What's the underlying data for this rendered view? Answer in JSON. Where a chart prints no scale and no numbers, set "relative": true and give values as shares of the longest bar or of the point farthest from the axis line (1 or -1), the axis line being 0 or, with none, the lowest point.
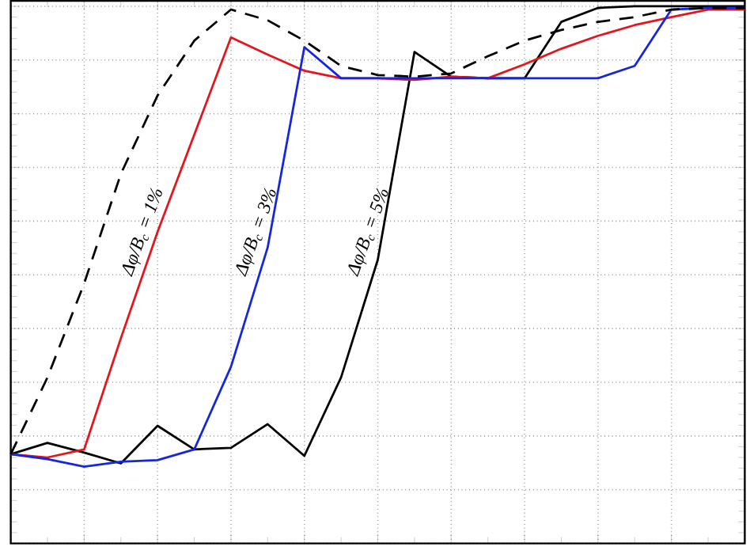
{
  "chart_data": {
    "type": "line",
    "relative": true,
    "grid": true,
    "categories": [
      null,
      null,
      null,
      null,
      null,
      null,
      null,
      null,
      null,
      null,
      null,
      null,
      null,
      null,
      null,
      null,
      null,
      null,
      null,
      null,
      null
    ],
    "series": [
      {
        "name": "Δφ/B$_{c}$ = 5%",
        "color": "#000000",
        "line_style": "solid",
        "values": [
          0.166,
          0.187,
          0.169,
          0.149,
          0.219,
          0.175,
          0.178,
          0.222,
          0.163,
          0.309,
          0.528,
          0.915,
          0.869,
          0.866,
          0.866,
          0.971,
          0.997,
          1,
          1,
          1,
          1
        ]
      },
      {
        "name": "Δφ/B$_{c}$ = 1%",
        "color": "#e8141c",
        "line_style": "solid",
        "values": [
          0.166,
          0.16,
          0.175,
          0.382,
          0.58,
          0.761,
          0.942,
          0.91,
          0.88,
          0.866,
          0.866,
          0.863,
          0.869,
          0.866,
          0.892,
          0.921,
          0.945,
          0.965,
          0.98,
          0.994,
          0.994
        ]
      },
      {
        "name": "Δφ/B$_{c}$ = 3%",
        "color": "#1426e0",
        "line_style": "solid",
        "values": [
          0.166,
          0.157,
          0.143,
          0.152,
          0.155,
          0.175,
          0.329,
          0.551,
          0.924,
          0.866,
          0.866,
          0.866,
          0.866,
          0.866,
          0.866,
          0.866,
          0.866,
          0.889,
          0.994,
          0.997,
          0.997
        ]
      },
      {
        "color": "#000000",
        "line_style": "dashed",
        "values": [
          0.166,
          0.309,
          0.484,
          0.688,
          0.834,
          0.936,
          0.994,
          0.974,
          0.936,
          0.889,
          0.872,
          0.869,
          0.875,
          0.907,
          0.936,
          0.956,
          0.971,
          0.98,
          0.994,
          0.997,
          0.997
        ]
      }
    ]
  }
}
